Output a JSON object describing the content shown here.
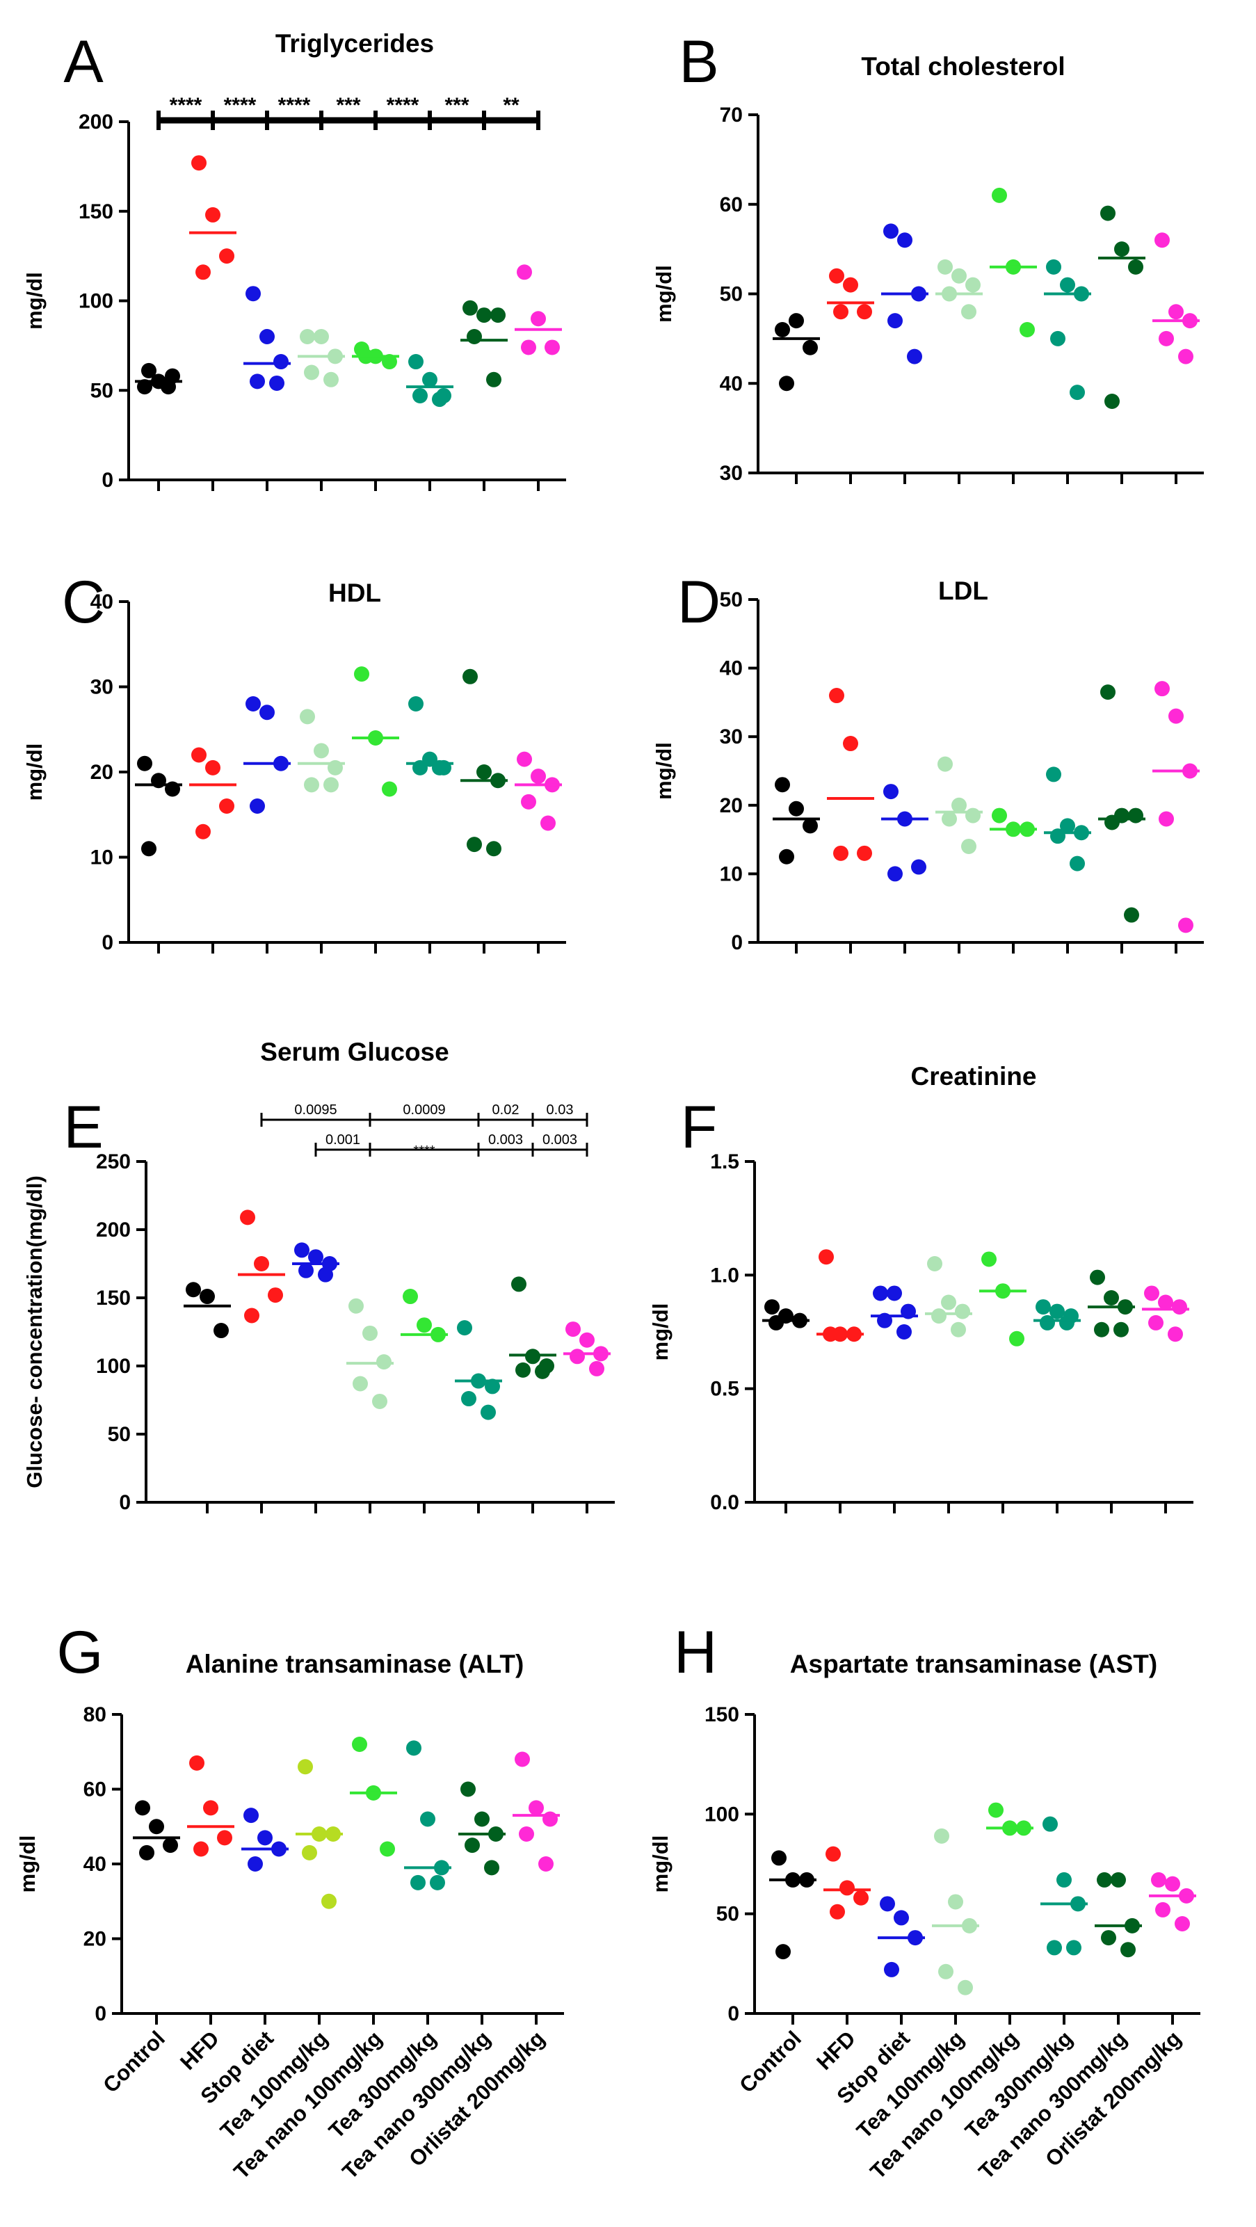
{
  "figure": {
    "categories": [
      "Control",
      "HFD",
      "Stop diet",
      "Tea 100mg/kg",
      "Tea nano 100mg/kg",
      "Tea 300mg/kg",
      "Tea nano 300mg/kg",
      "Orlistat 200mg/kg"
    ],
    "colors": {
      "Control": "#000000",
      "HFD": "#ff1a1a",
      "Stop diet": "#1414e0",
      "Tea 100mg/kg": "#aee3b4",
      "Tea nano 100mg/kg": "#33e633",
      "Tea 300mg/kg": "#00997a",
      "Tea nano 300mg/kg": "#005f1e",
      "Orlistat 200mg/kg": "#ff29d6"
    },
    "colors_override": {
      "G": {
        "Tea 100mg/kg": "#b6dc22"
      }
    }
  },
  "chart_data": [
    {
      "panel": "A",
      "type": "scatter",
      "title": "Triglycerides",
      "ylabel": "mg/dl",
      "ylim": [
        0,
        200
      ],
      "yticks": [
        0,
        50,
        100,
        150,
        200
      ],
      "yticklabels": [
        "0",
        "50",
        "100",
        "150",
        "200"
      ],
      "show_category_labels": false,
      "series": [
        {
          "name": "Control",
          "values": [
            52,
            55,
            58,
            61,
            52
          ],
          "mean": 55
        },
        {
          "name": "HFD",
          "values": [
            177,
            148,
            125,
            116
          ],
          "mean": 138
        },
        {
          "name": "Stop diet",
          "values": [
            104,
            80,
            66,
            55,
            54
          ],
          "mean": 65
        },
        {
          "name": "Tea 100mg/kg",
          "values": [
            80,
            80,
            69,
            60,
            56
          ],
          "mean": 69
        },
        {
          "name": "Tea nano 100mg/kg",
          "values": [
            73,
            69,
            66,
            69
          ],
          "mean": 69
        },
        {
          "name": "Tea 300mg/kg",
          "values": [
            66,
            56,
            47,
            47,
            45
          ],
          "mean": 52
        },
        {
          "name": "Tea nano 300mg/kg",
          "values": [
            96,
            92,
            92,
            80,
            56
          ],
          "mean": 78
        },
        {
          "name": "Orlistat 200mg/kg",
          "values": [
            116,
            90,
            74,
            74
          ],
          "mean": 84
        }
      ],
      "significance": [
        {
          "from": 0,
          "to": 1,
          "label": "****",
          "row": 0
        },
        {
          "from": 1,
          "to": 2,
          "label": "****",
          "row": 0
        },
        {
          "from": 2,
          "to": 3,
          "label": "****",
          "row": 0
        },
        {
          "from": 3,
          "to": 4,
          "label": "***",
          "row": 0
        },
        {
          "from": 4,
          "to": 5,
          "label": "****",
          "row": 0
        },
        {
          "from": 5,
          "to": 6,
          "label": "***",
          "row": 0
        },
        {
          "from": 6,
          "to": 7,
          "label": "**",
          "row": 0
        }
      ]
    },
    {
      "panel": "B",
      "type": "scatter",
      "title": "Total cholesterol",
      "ylabel": "mg/dl",
      "ylim": [
        30,
        70
      ],
      "yticks": [
        30,
        40,
        50,
        60,
        70
      ],
      "yticklabels": [
        "30",
        "40",
        "50",
        "60",
        "70"
      ],
      "show_category_labels": false,
      "series": [
        {
          "name": "Control",
          "values": [
            46,
            47,
            44,
            40
          ],
          "mean": 45
        },
        {
          "name": "HFD",
          "values": [
            52,
            51,
            48,
            48
          ],
          "mean": 49
        },
        {
          "name": "Stop diet",
          "values": [
            57,
            56,
            50,
            47,
            43
          ],
          "mean": 50
        },
        {
          "name": "Tea 100mg/kg",
          "values": [
            53,
            52,
            51,
            50,
            48
          ],
          "mean": 50
        },
        {
          "name": "Tea nano 100mg/kg",
          "values": [
            61,
            53,
            46
          ],
          "mean": 53
        },
        {
          "name": "Tea 300mg/kg",
          "values": [
            53,
            51,
            50,
            45,
            39
          ],
          "mean": 50
        },
        {
          "name": "Tea nano 300mg/kg",
          "values": [
            59,
            55,
            53,
            38
          ],
          "mean": 54
        },
        {
          "name": "Orlistat 200mg/kg",
          "values": [
            56,
            48,
            47,
            45,
            43
          ],
          "mean": 47
        }
      ],
      "significance": []
    },
    {
      "panel": "C",
      "type": "scatter",
      "title": "HDL",
      "ylabel": "mg/dl",
      "ylim": [
        0,
        40
      ],
      "yticks": [
        0,
        10,
        20,
        30,
        40
      ],
      "yticklabels": [
        "0",
        "10",
        "20",
        "30",
        "40"
      ],
      "show_category_labels": false,
      "series": [
        {
          "name": "Control",
          "values": [
            21,
            19,
            18,
            11
          ],
          "mean": 18.5
        },
        {
          "name": "HFD",
          "values": [
            22,
            20.5,
            16,
            13
          ],
          "mean": 18.5
        },
        {
          "name": "Stop diet",
          "values": [
            28,
            27,
            21,
            16
          ],
          "mean": 21
        },
        {
          "name": "Tea 100mg/kg",
          "values": [
            26.5,
            22.5,
            20.5,
            18.5,
            18.5
          ],
          "mean": 21
        },
        {
          "name": "Tea nano 100mg/kg",
          "values": [
            31.5,
            24,
            18
          ],
          "mean": 24
        },
        {
          "name": "Tea 300mg/kg",
          "values": [
            28,
            21.5,
            20.5,
            20.5,
            20.5
          ],
          "mean": 21
        },
        {
          "name": "Tea nano 300mg/kg",
          "values": [
            31.2,
            20,
            19,
            11.5,
            11
          ],
          "mean": 19
        },
        {
          "name": "Orlistat 200mg/kg",
          "values": [
            21.5,
            19.5,
            18.5,
            16.5,
            14
          ],
          "mean": 18.5
        }
      ],
      "significance": []
    },
    {
      "panel": "D",
      "type": "scatter",
      "title": "LDL",
      "ylabel": "mg/dl",
      "ylim": [
        0,
        50
      ],
      "yticks": [
        0,
        10,
        20,
        30,
        40,
        50
      ],
      "yticklabels": [
        "0",
        "10",
        "20",
        "30",
        "40",
        "50"
      ],
      "show_category_labels": false,
      "series": [
        {
          "name": "Control",
          "values": [
            23,
            19.5,
            17,
            12.5
          ],
          "mean": 18
        },
        {
          "name": "HFD",
          "values": [
            36,
            29,
            13,
            13
          ],
          "mean": 21
        },
        {
          "name": "Stop diet",
          "values": [
            22,
            18,
            11,
            10
          ],
          "mean": 18
        },
        {
          "name": "Tea 100mg/kg",
          "values": [
            26,
            20,
            18.5,
            18,
            14
          ],
          "mean": 19
        },
        {
          "name": "Tea nano 100mg/kg",
          "values": [
            18.5,
            16.5,
            16.5
          ],
          "mean": 16.5
        },
        {
          "name": "Tea 300mg/kg",
          "values": [
            24.5,
            17,
            16,
            15.5,
            11.5
          ],
          "mean": 16
        },
        {
          "name": "Tea nano 300mg/kg",
          "values": [
            36.5,
            18.5,
            18.5,
            17.5,
            4
          ],
          "mean": 18
        },
        {
          "name": "Orlistat 200mg/kg",
          "values": [
            37,
            33,
            25,
            18,
            2.5
          ],
          "mean": 25
        }
      ],
      "significance": []
    },
    {
      "panel": "E",
      "type": "scatter",
      "title": "Serum Glucose",
      "ylabel": "Glucose- concentration(mg/dl)",
      "ylim": [
        0,
        250
      ],
      "yticks": [
        0,
        50,
        100,
        150,
        200,
        250
      ],
      "yticklabels": [
        "0",
        "50",
        "100",
        "150",
        "200",
        "250"
      ],
      "show_category_labels": false,
      "series": [
        {
          "name": "Control",
          "values": [
            156,
            151,
            126
          ],
          "mean": 144
        },
        {
          "name": "HFD",
          "values": [
            209,
            175,
            152,
            137
          ],
          "mean": 167
        },
        {
          "name": "Stop diet",
          "values": [
            185,
            180,
            175,
            170,
            167
          ],
          "mean": 175
        },
        {
          "name": "Tea 100mg/kg",
          "values": [
            144,
            124,
            103,
            87,
            74
          ],
          "mean": 102
        },
        {
          "name": "Tea nano 100mg/kg",
          "values": [
            151,
            130,
            123
          ],
          "mean": 123
        },
        {
          "name": "Tea 300mg/kg",
          "values": [
            128,
            89,
            85,
            76,
            66
          ],
          "mean": 89
        },
        {
          "name": "Tea nano 300mg/kg",
          "values": [
            160,
            107,
            100,
            97,
            96
          ],
          "mean": 108
        },
        {
          "name": "Orlistat 200mg/kg",
          "values": [
            127,
            119,
            109,
            107,
            98
          ],
          "mean": 109
        }
      ],
      "significance": [
        {
          "from": 1,
          "to": 3,
          "label": "0.0095",
          "row": 0
        },
        {
          "from": 3,
          "to": 5,
          "label": "0.0009",
          "row": 0
        },
        {
          "from": 5,
          "to": 6,
          "label": "0.02",
          "row": 0
        },
        {
          "from": 6,
          "to": 7,
          "label": "0.03",
          "row": 0
        },
        {
          "from": 2,
          "to": 3,
          "label": "0.001",
          "row": 1
        },
        {
          "from": 3,
          "to": 5,
          "label": "****",
          "row": 1
        },
        {
          "from": 5,
          "to": 6,
          "label": "0.003",
          "row": 1
        },
        {
          "from": 6,
          "to": 7,
          "label": "0.003",
          "row": 1
        }
      ]
    },
    {
      "panel": "F",
      "type": "scatter",
      "title": "Creatinine",
      "ylabel": "mg/dl",
      "ylim": [
        0,
        1.5
      ],
      "yticks": [
        0,
        0.5,
        1.0,
        1.5
      ],
      "yticklabels": [
        "0.0",
        "0.5",
        "1.0",
        "1.5"
      ],
      "show_category_labels": false,
      "series": [
        {
          "name": "Control",
          "values": [
            0.86,
            0.82,
            0.8,
            0.79
          ],
          "mean": 0.8
        },
        {
          "name": "HFD",
          "values": [
            1.08,
            0.74,
            0.74,
            0.74
          ],
          "mean": 0.74
        },
        {
          "name": "Stop diet",
          "values": [
            0.92,
            0.92,
            0.84,
            0.8,
            0.75
          ],
          "mean": 0.82
        },
        {
          "name": "Tea 100mg/kg",
          "values": [
            1.05,
            0.88,
            0.84,
            0.82,
            0.76
          ],
          "mean": 0.83
        },
        {
          "name": "Tea nano 100mg/kg",
          "values": [
            1.07,
            0.93,
            0.72
          ],
          "mean": 0.93
        },
        {
          "name": "Tea 300mg/kg",
          "values": [
            0.86,
            0.84,
            0.82,
            0.79,
            0.79
          ],
          "mean": 0.8
        },
        {
          "name": "Tea nano 300mg/kg",
          "values": [
            0.99,
            0.9,
            0.86,
            0.76,
            0.76
          ],
          "mean": 0.86
        },
        {
          "name": "Orlistat 200mg/kg",
          "values": [
            0.92,
            0.88,
            0.86,
            0.79,
            0.74
          ],
          "mean": 0.85
        }
      ],
      "significance": []
    },
    {
      "panel": "G",
      "type": "scatter",
      "title": "Alanine transaminase (ALT)",
      "ylabel": "mg/dl",
      "ylim": [
        0,
        80
      ],
      "yticks": [
        0,
        20,
        40,
        60,
        80
      ],
      "yticklabels": [
        "0",
        "20",
        "40",
        "60",
        "80"
      ],
      "show_category_labels": true,
      "series": [
        {
          "name": "Control",
          "values": [
            55,
            50,
            45,
            43
          ],
          "mean": 47
        },
        {
          "name": "HFD",
          "values": [
            67,
            55,
            47,
            44
          ],
          "mean": 50
        },
        {
          "name": "Stop diet",
          "values": [
            53,
            47,
            44,
            40
          ],
          "mean": 44
        },
        {
          "name": "Tea 100mg/kg",
          "values": [
            66,
            48,
            48,
            43,
            30
          ],
          "mean": 48
        },
        {
          "name": "Tea nano 100mg/kg",
          "values": [
            72,
            59,
            44
          ],
          "mean": 59
        },
        {
          "name": "Tea 300mg/kg",
          "values": [
            71,
            52,
            39,
            35,
            35
          ],
          "mean": 39
        },
        {
          "name": "Tea nano 300mg/kg",
          "values": [
            60,
            52,
            48,
            45,
            39
          ],
          "mean": 48
        },
        {
          "name": "Orlistat 200mg/kg",
          "values": [
            68,
            55,
            52,
            48,
            40
          ],
          "mean": 53
        }
      ],
      "significance": []
    },
    {
      "panel": "H",
      "type": "scatter",
      "title": "Aspartate transaminase (AST)",
      "ylabel": "mg/dl",
      "ylim": [
        0,
        150
      ],
      "yticks": [
        0,
        50,
        100,
        150
      ],
      "yticklabels": [
        "0",
        "50",
        "100",
        "150"
      ],
      "show_category_labels": true,
      "series": [
        {
          "name": "Control",
          "values": [
            78,
            67,
            67,
            31
          ],
          "mean": 67
        },
        {
          "name": "HFD",
          "values": [
            80,
            63,
            58,
            51
          ],
          "mean": 62
        },
        {
          "name": "Stop diet",
          "values": [
            55,
            48,
            38,
            22
          ],
          "mean": 38
        },
        {
          "name": "Tea 100mg/kg",
          "values": [
            89,
            56,
            44,
            21,
            13
          ],
          "mean": 44
        },
        {
          "name": "Tea nano 100mg/kg",
          "values": [
            102,
            93,
            93
          ],
          "mean": 93
        },
        {
          "name": "Tea 300mg/kg",
          "values": [
            95,
            67,
            55,
            33,
            33
          ],
          "mean": 55
        },
        {
          "name": "Tea nano 300mg/kg",
          "values": [
            67,
            67,
            44,
            38,
            32
          ],
          "mean": 44
        },
        {
          "name": "Orlistat 200mg/kg",
          "values": [
            67,
            65,
            59,
            52,
            45
          ],
          "mean": 59
        }
      ],
      "significance": []
    }
  ]
}
